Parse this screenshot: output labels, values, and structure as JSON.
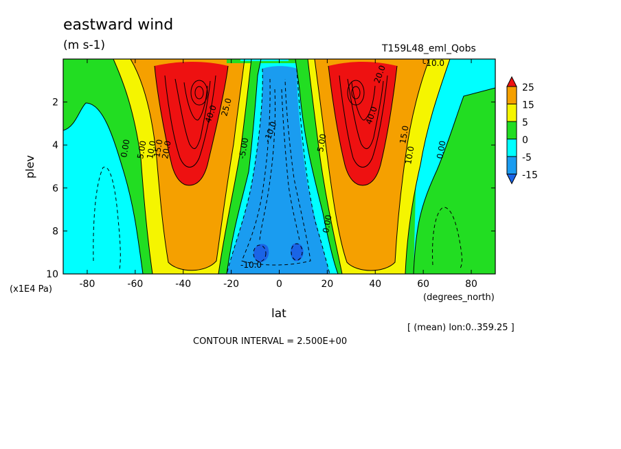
{
  "header": {
    "title": "eastward wind",
    "units": "(m s-1)",
    "run_name": "T159L48_eml_Qobs"
  },
  "footer": {
    "avg_note": "[ (mean) lon:0..359.25 ]",
    "contour_interval": "CONTOUR INTERVAL = 2.500E+00"
  },
  "chart_data": {
    "type": "contour",
    "title": "eastward wind",
    "subtitle": "(m s-1)",
    "xlabel": "lat",
    "x_units": "(degrees_north)",
    "ylabel": "plev",
    "y_units": "(x1E4 Pa)",
    "xlim": [
      -90,
      90
    ],
    "ylim": [
      10,
      0
    ],
    "x_ticks": [
      -80,
      -60,
      -40,
      -20,
      0,
      20,
      40,
      60,
      80
    ],
    "y_ticks": [
      2,
      4,
      6,
      8,
      10
    ],
    "contour_interval": 2.5,
    "colorbar": {
      "labels": [
        "25",
        "15",
        "5",
        "0",
        "-5",
        "-15"
      ],
      "colors": [
        "#ee1111",
        "#f5a000",
        "#f5f500",
        "#22dd22",
        "#00ffff",
        "#1a9cf0",
        "#1a64e6"
      ]
    },
    "jets": [
      {
        "lat": -33,
        "plev": 1.6,
        "max_value": 40
      },
      {
        "lat": 31,
        "plev": 1.6,
        "max_value": 40
      }
    ],
    "contour_labels": [
      "0.00",
      "5.00",
      "10.0",
      "15.0",
      "20.0",
      "25.0",
      "40.0",
      "-5.00",
      "-10.0",
      "-10.0",
      "0.00",
      "5.00",
      "10.0",
      "15.0",
      "20.0",
      "40.0",
      "0.00",
      "-10.0"
    ]
  }
}
